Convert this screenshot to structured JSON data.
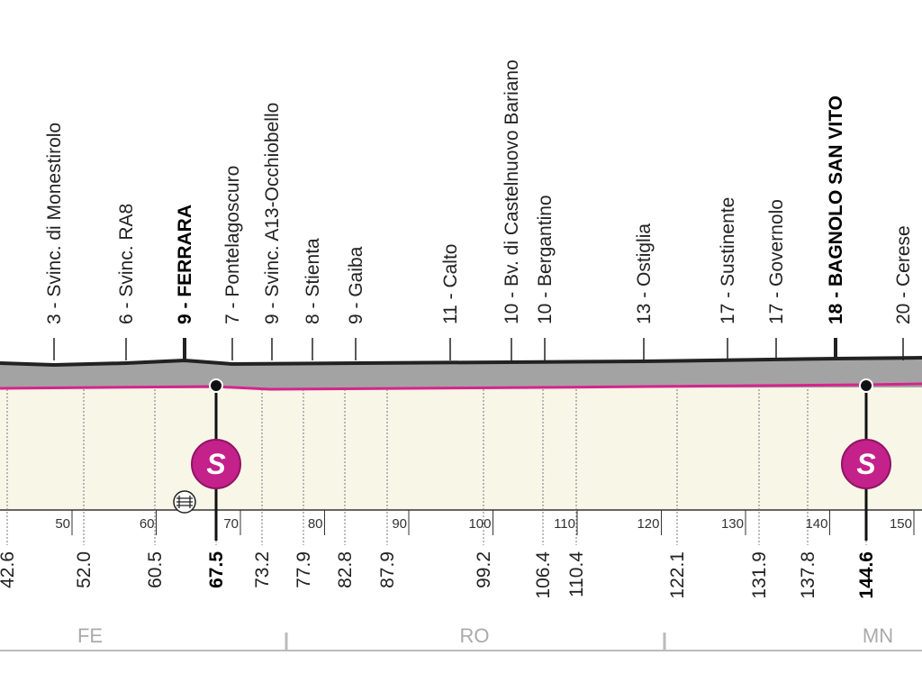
{
  "places": [
    "3 - Svinc. di Monestirolo",
    "6 - Svinc. RA8",
    "9 - FERRARA",
    "7 - Pontelagoscuro",
    "9 - Svinc. A13-Occhiobello",
    "8 - Stienta",
    "9 - Gaiba",
    "11 - Calto",
    "10 - Bv. di Castelnuovo Bariano",
    "10 - Bergantino",
    "13 - Ostiglia",
    "17 - Sustinente",
    "17 - Governolo",
    "18 - BAGNOLO SAN VITO",
    "20 - Cerese"
  ],
  "distances": [
    "42.6",
    "52.0",
    "60.5",
    "67.5",
    "73.2",
    "77.9",
    "82.8",
    "87.9",
    "99.2",
    "106.4",
    "110.4",
    "122.1",
    "131.9",
    "137.8",
    "144.6"
  ],
  "axis_ticks": [
    50,
    60,
    70,
    80,
    90,
    100,
    110,
    120,
    130,
    140,
    150
  ],
  "sprint_symbol": "S",
  "provinces": [
    "FE",
    "RO",
    "MN"
  ]
}
